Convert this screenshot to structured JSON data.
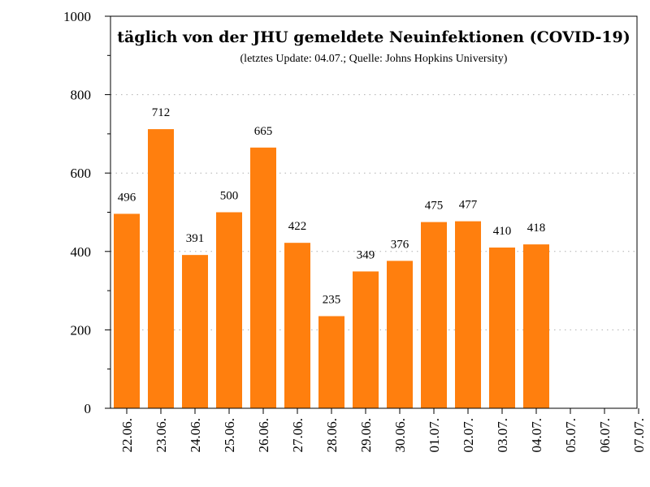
{
  "chart_data": {
    "type": "bar",
    "title": "täglich von der JHU gemeldete Neuinfektionen (COVID-19)",
    "subtitle": "(letztes Update: 04.07.; Quelle: Johns Hopkins University)",
    "categories": [
      "22.06.",
      "23.06.",
      "24.06.",
      "25.06.",
      "26.06.",
      "27.06.",
      "28.06.",
      "29.06.",
      "30.06.",
      "01.07.",
      "02.07.",
      "03.07.",
      "04.07.",
      "05.07.",
      "06.07.",
      "07.07."
    ],
    "values": [
      496,
      712,
      391,
      500,
      665,
      422,
      235,
      349,
      376,
      475,
      477,
      410,
      418,
      null,
      null,
      null
    ],
    "value_labels": [
      "496",
      "712",
      "391",
      "500",
      "665",
      "422",
      "235",
      "349",
      "376",
      "475",
      "477",
      "410",
      "418",
      "",
      "",
      ""
    ],
    "yticks": [
      0,
      200,
      400,
      600,
      800,
      1000
    ],
    "ytick_labels": [
      "0",
      "200",
      "400",
      "600",
      "800",
      "1000"
    ],
    "ylim": [
      0,
      1000
    ],
    "grid": "horizontal dotted",
    "bar_color": "#ff7f0e",
    "grid_color": "#b0b0b0"
  }
}
